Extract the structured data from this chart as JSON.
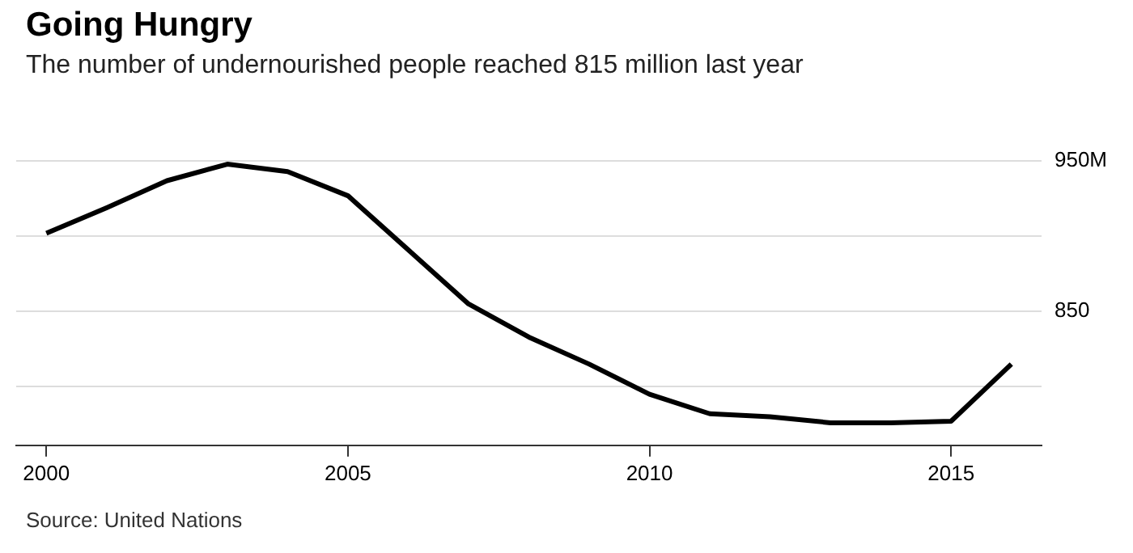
{
  "chart_data": {
    "type": "line",
    "title": "Going Hungry",
    "subtitle": "The number of undernourished people reached 815 million last year",
    "x": [
      2000,
      2001,
      2002,
      2003,
      2004,
      2005,
      2006,
      2007,
      2008,
      2009,
      2010,
      2011,
      2012,
      2013,
      2014,
      2015,
      2016
    ],
    "series": [
      {
        "color": "#000000",
        "values": [
          902,
          919,
          937,
          948,
          943,
          927,
          891,
          855,
          833,
          815,
          795,
          782,
          780,
          776,
          776,
          777,
          815
        ]
      }
    ],
    "xlim": [
      1999.5,
      2016.5
    ],
    "xticks": [
      2000,
      2005,
      2010,
      2015
    ],
    "ylim": [
      761,
      952
    ],
    "yticks": [
      {
        "value": 800,
        "label": null
      },
      {
        "value": 850,
        "label": "850"
      },
      {
        "value": 900,
        "label": null
      },
      {
        "value": 950,
        "label": "950M"
      }
    ],
    "grid": "y",
    "legend": false,
    "marker": "none",
    "line_style": "solid",
    "annotations": [
      "Source: United Nations"
    ]
  }
}
